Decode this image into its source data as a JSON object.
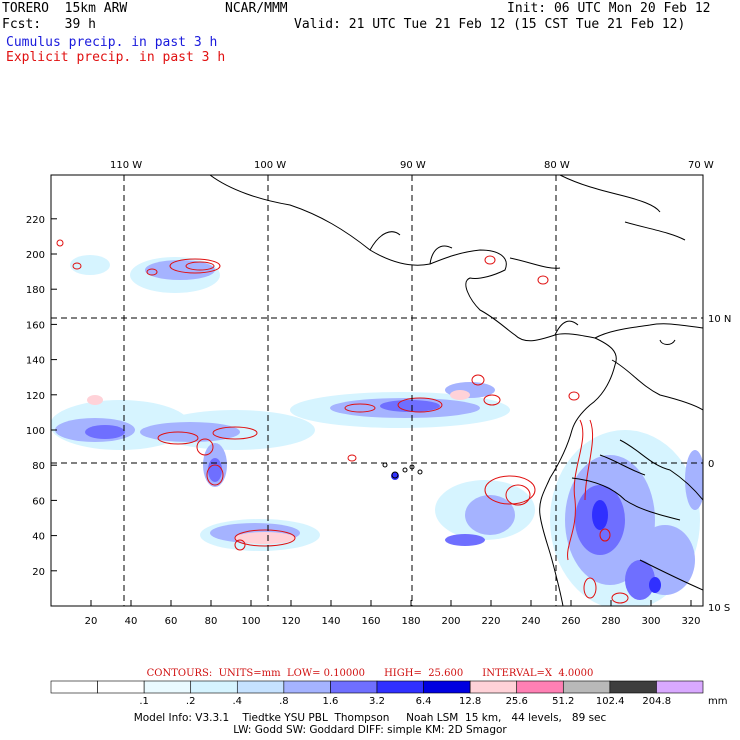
{
  "header": {
    "run_name": "TORERO  15km ARW",
    "org": "NCAR/MMM",
    "init": "Init: 06 UTC Mon 20 Feb 12",
    "fcst": "Fcst:   39 h",
    "valid": "Valid: 21 UTC Tue 21 Feb 12 (15 CST Tue 21 Feb 12)",
    "cumulus_label": "Cumulus precip. in past 3 h",
    "explicit_label": "Explicit precip. in past 3 h"
  },
  "colors": {
    "cumulus": "#1a1adc",
    "explicit": "#e01010",
    "coast": "#000000"
  },
  "map": {
    "lon_labels": [
      "110 W",
      "100 W",
      "90 W",
      "80 W",
      "70 W"
    ],
    "lat_labels": [
      "10 N",
      "0",
      "10 S"
    ],
    "x_ticks": [
      20,
      40,
      60,
      80,
      100,
      120,
      140,
      160,
      180,
      200,
      220,
      240,
      260,
      280,
      300,
      320
    ],
    "y_ticks": [
      20,
      40,
      60,
      80,
      100,
      120,
      140,
      160,
      180,
      200,
      220
    ]
  },
  "legend": {
    "contours": "CONTOURS:  UNITS=mm  LOW= 0.10000      HIGH=  25.600      INTERVAL=X  4.0000",
    "levels": [
      ".1",
      ".2",
      ".4",
      ".8",
      "1.6",
      "3.2",
      "6.4",
      "12.8",
      "25.6",
      "51.2",
      "102.4",
      "204.8"
    ],
    "units": "mm",
    "colors": [
      "#ffffff",
      "#ffffff",
      "#eafaff",
      "#d6f4ff",
      "#c6e2ff",
      "#a5b3ff",
      "#6f6fff",
      "#3030ff",
      "#0000e0",
      "#ffd2d8",
      "#ff80b4",
      "#b9b9b9",
      "#3e3e3e",
      "#d9a9ff"
    ]
  },
  "footer": {
    "line1": "Model Info: V3.3.1    Tiedtke YSU PBL  Thompson     Noah LSM  15 km,   44 levels,   89 sec",
    "line2": "LW: Godd SW: Goddard DIFF: simple KM: 2D Smagor"
  }
}
